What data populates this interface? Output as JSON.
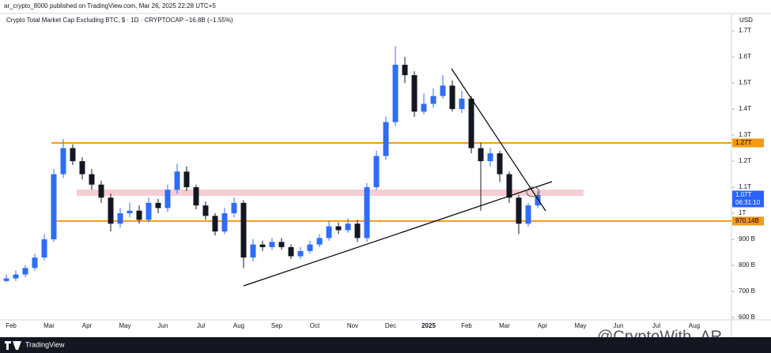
{
  "header": "ar_crypto_8000 published on TradingView.com, Mar 26, 2025 22:28 UTC+5",
  "footer": "TradingView",
  "watermark": "@CryptoWith_AR",
  "chart_data": {
    "type": "candlestick",
    "title": "Crypto Total Market Cap Excluding BTC, $ · 1D · CRYPTOCAP  −16.8B (−1.55%)",
    "y_axis_label": "USD",
    "categories": [
      null,
      "Feb",
      null,
      null,
      null,
      "Mar",
      null,
      null,
      null,
      "Apr",
      null,
      null,
      null,
      "May",
      null,
      null,
      null,
      "Jun",
      null,
      null,
      null,
      "Jul",
      null,
      null,
      null,
      "Aug",
      null,
      null,
      null,
      "Sep",
      null,
      null,
      null,
      "Oct",
      null,
      null,
      null,
      "Nov",
      null,
      null,
      null,
      "Dec",
      null,
      null,
      null,
      "2025",
      null,
      null,
      null,
      "Feb",
      null,
      null,
      null,
      "Mar",
      null,
      null,
      null,
      "Apr",
      null,
      null,
      null,
      "May",
      null,
      null,
      null,
      "Jun",
      null,
      null,
      null,
      "Jul",
      null,
      null,
      null,
      "Aug",
      null,
      null,
      null
    ],
    "open": [
      740,
      750,
      765,
      790,
      830,
      900,
      1150,
      1250,
      1200,
      1150,
      1110,
      1060,
      960,
      1000,
      1010,
      975,
      1040,
      1020,
      1090,
      1160,
      1100,
      1030,
      990,
      930,
      1000,
      1040,
      830,
      880,
      870,
      890,
      870,
      835,
      855,
      880,
      905,
      950,
      935,
      960,
      905,
      1100,
      1220,
      1350,
      1570,
      1530,
      1390,
      1420,
      1450,
      1490,
      1400,
      1440,
      1250,
      1200,
      1230,
      1150,
      1060,
      960,
      1030,
      null,
      null,
      null,
      null,
      null,
      null,
      null,
      null,
      null,
      null,
      null,
      null,
      null,
      null,
      null,
      null,
      null,
      null,
      null,
      null
    ],
    "high": [
      765,
      780,
      800,
      845,
      920,
      1170,
      1285,
      1265,
      1215,
      1170,
      1125,
      1075,
      1020,
      1040,
      1030,
      1060,
      1055,
      1110,
      1190,
      1180,
      1110,
      1045,
      1000,
      1020,
      1060,
      1050,
      900,
      895,
      905,
      905,
      880,
      870,
      895,
      920,
      970,
      965,
      980,
      975,
      1115,
      1240,
      1370,
      1640,
      1600,
      1545,
      1460,
      1480,
      1530,
      1510,
      1470,
      1450,
      1270,
      1250,
      1240,
      1160,
      1070,
      1040,
      1085,
      null,
      null,
      null,
      null,
      null,
      null,
      null,
      null,
      null,
      null,
      null,
      null,
      null,
      null,
      null,
      null,
      null,
      null,
      null,
      null
    ],
    "low": [
      735,
      740,
      755,
      780,
      820,
      890,
      1135,
      1185,
      1130,
      1090,
      1040,
      930,
      945,
      985,
      960,
      965,
      1000,
      1005,
      1075,
      1085,
      1015,
      975,
      915,
      920,
      985,
      790,
      815,
      855,
      860,
      860,
      825,
      825,
      845,
      870,
      895,
      920,
      925,
      890,
      890,
      1090,
      1205,
      1335,
      1500,
      1370,
      1380,
      1405,
      1440,
      1390,
      1385,
      1230,
      1010,
      1180,
      1120,
      1040,
      920,
      950,
      1020,
      null,
      null,
      null,
      null,
      null,
      null,
      null,
      null,
      null,
      null,
      null,
      null,
      null,
      null,
      null,
      null,
      null,
      null,
      null,
      null
    ],
    "close": [
      750,
      765,
      790,
      830,
      900,
      1150,
      1250,
      1200,
      1150,
      1110,
      1060,
      960,
      1000,
      1010,
      975,
      1040,
      1020,
      1090,
      1160,
      1100,
      1030,
      990,
      930,
      1000,
      1040,
      830,
      880,
      870,
      890,
      870,
      835,
      855,
      880,
      905,
      950,
      935,
      960,
      905,
      1100,
      1220,
      1350,
      1570,
      1530,
      1390,
      1420,
      1450,
      1490,
      1400,
      1440,
      1250,
      1200,
      1230,
      1150,
      1060,
      960,
      1030,
      1070,
      null,
      null,
      null,
      null,
      null,
      null,
      null,
      null,
      null,
      null,
      null,
      null,
      null,
      null,
      null,
      null,
      null,
      null,
      null,
      null
    ],
    "up_color": "#2f6df6",
    "down_color": "#131722",
    "ylim": [
      591,
      1767
    ],
    "yticks": [
      {
        "value": 600,
        "label": "600 B"
      },
      {
        "value": 700,
        "label": "700 B"
      },
      {
        "value": 800,
        "label": "800 B"
      },
      {
        "value": 900,
        "label": "900 B"
      },
      {
        "value": 1000,
        "label": "1T"
      },
      {
        "value": 1100,
        "label": "1.1T"
      },
      {
        "value": 1200,
        "label": "1.2T"
      },
      {
        "value": 1300,
        "label": "1.3T"
      },
      {
        "value": 1400,
        "label": "1.4T"
      },
      {
        "value": 1500,
        "label": "1.5T"
      },
      {
        "value": 1600,
        "label": "1.6T"
      },
      {
        "value": 1700,
        "label": "1.7T"
      }
    ],
    "price_levels": [
      {
        "value": 1270,
        "label": "1.27T",
        "color": "#f59a12"
      },
      {
        "value": 970.14,
        "label": "970.14B",
        "color": "#f59a12"
      }
    ],
    "last_price": {
      "value": 1070,
      "label": "1.07T",
      "countdown": "06:31:10",
      "color": "#2962ff"
    },
    "grid": false
  }
}
